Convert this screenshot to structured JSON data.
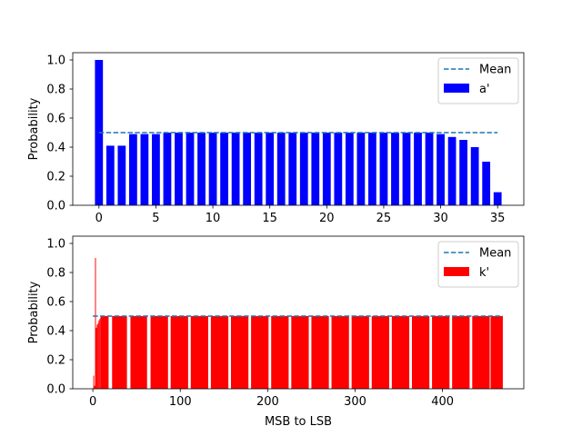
{
  "chart_data": [
    {
      "type": "bar",
      "xlabel": "",
      "ylabel": "Probability",
      "xlim": [
        -2.3,
        37.3
      ],
      "ylim": [
        0,
        1.05
      ],
      "xticks": [
        0,
        5,
        10,
        15,
        20,
        25,
        30,
        35
      ],
      "yticks": [
        0.0,
        0.2,
        0.4,
        0.6,
        0.8,
        1.0
      ],
      "ytick_labels": [
        "0.0",
        "0.2",
        "0.4",
        "0.6",
        "0.8",
        "1.0"
      ],
      "bar_width": 0.7,
      "colors": {
        "bar": "#0000ff",
        "mean": "#1f77b4"
      },
      "legend": {
        "placement": "top-right",
        "mean_label": "Mean",
        "bar_label": "a'"
      },
      "mean": {
        "value": 0.5,
        "x_range": [
          0,
          35
        ]
      },
      "series": [
        {
          "name": "a'",
          "x": [
            0,
            1,
            2,
            3,
            4,
            5,
            6,
            7,
            8,
            9,
            10,
            11,
            12,
            13,
            14,
            15,
            16,
            17,
            18,
            19,
            20,
            21,
            22,
            23,
            24,
            25,
            26,
            27,
            28,
            29,
            30,
            31,
            32,
            33,
            34,
            35
          ],
          "values": [
            1.0,
            0.41,
            0.41,
            0.49,
            0.49,
            0.49,
            0.5,
            0.5,
            0.5,
            0.5,
            0.5,
            0.5,
            0.5,
            0.5,
            0.5,
            0.5,
            0.5,
            0.5,
            0.5,
            0.5,
            0.5,
            0.5,
            0.5,
            0.5,
            0.5,
            0.5,
            0.5,
            0.5,
            0.5,
            0.5,
            0.49,
            0.47,
            0.45,
            0.4,
            0.3,
            0.09
          ]
        }
      ]
    },
    {
      "type": "bar",
      "xlabel": "MSB to LSB",
      "ylabel": "Probability",
      "xlim": [
        -23,
        493
      ],
      "ylim": [
        0,
        1.05
      ],
      "xticks": [
        0,
        100,
        200,
        300,
        400
      ],
      "yticks": [
        0.0,
        0.2,
        0.4,
        0.6,
        0.8,
        1.0
      ],
      "ytick_labels": [
        "0.0",
        "0.2",
        "0.4",
        "0.6",
        "0.8",
        "1.0"
      ],
      "colors": {
        "bar": "#ff0000",
        "mean": "#1f77b4"
      },
      "legend": {
        "placement": "top-right",
        "mean_label": "Mean",
        "bar_label": "k'"
      },
      "mean": {
        "value": 0.5,
        "x_range": [
          0,
          469
        ]
      },
      "series": [
        {
          "name": "k'",
          "spikes": [
            {
              "x": 1,
              "value": 0.09
            },
            {
              "x": 2,
              "value": 0.02
            },
            {
              "x": 3,
              "value": 0.9
            },
            {
              "x": 4,
              "value": 0.42
            },
            {
              "x": 5,
              "value": 0.44
            },
            {
              "x": 6,
              "value": 0.45
            },
            {
              "x": 7,
              "value": 0.47
            },
            {
              "x": 8,
              "value": 0.48
            },
            {
              "x": 9,
              "value": 0.49
            }
          ],
          "blocks": [
            {
              "x0": 9,
              "x1": 18,
              "value": 0.5
            },
            {
              "x0": 22,
              "x1": 39,
              "value": 0.5
            },
            {
              "x0": 43,
              "x1": 62,
              "value": 0.5
            },
            {
              "x0": 66,
              "x1": 86,
              "value": 0.5
            },
            {
              "x0": 89,
              "x1": 109,
              "value": 0.5
            },
            {
              "x0": 112,
              "x1": 132,
              "value": 0.5
            },
            {
              "x0": 135,
              "x1": 155,
              "value": 0.5
            },
            {
              "x0": 158,
              "x1": 178,
              "value": 0.5
            },
            {
              "x0": 181,
              "x1": 201,
              "value": 0.5
            },
            {
              "x0": 204,
              "x1": 224,
              "value": 0.5
            },
            {
              "x0": 227,
              "x1": 247,
              "value": 0.5
            },
            {
              "x0": 250,
              "x1": 270,
              "value": 0.5
            },
            {
              "x0": 273,
              "x1": 293,
              "value": 0.5
            },
            {
              "x0": 296,
              "x1": 316,
              "value": 0.5
            },
            {
              "x0": 319,
              "x1": 339,
              "value": 0.5
            },
            {
              "x0": 342,
              "x1": 362,
              "value": 0.5
            },
            {
              "x0": 365,
              "x1": 385,
              "value": 0.5
            },
            {
              "x0": 388,
              "x1": 408,
              "value": 0.5
            },
            {
              "x0": 411,
              "x1": 431,
              "value": 0.5
            },
            {
              "x0": 434,
              "x1": 454,
              "value": 0.5
            },
            {
              "x0": 455,
              "x1": 469,
              "value": 0.5
            }
          ]
        }
      ]
    }
  ]
}
